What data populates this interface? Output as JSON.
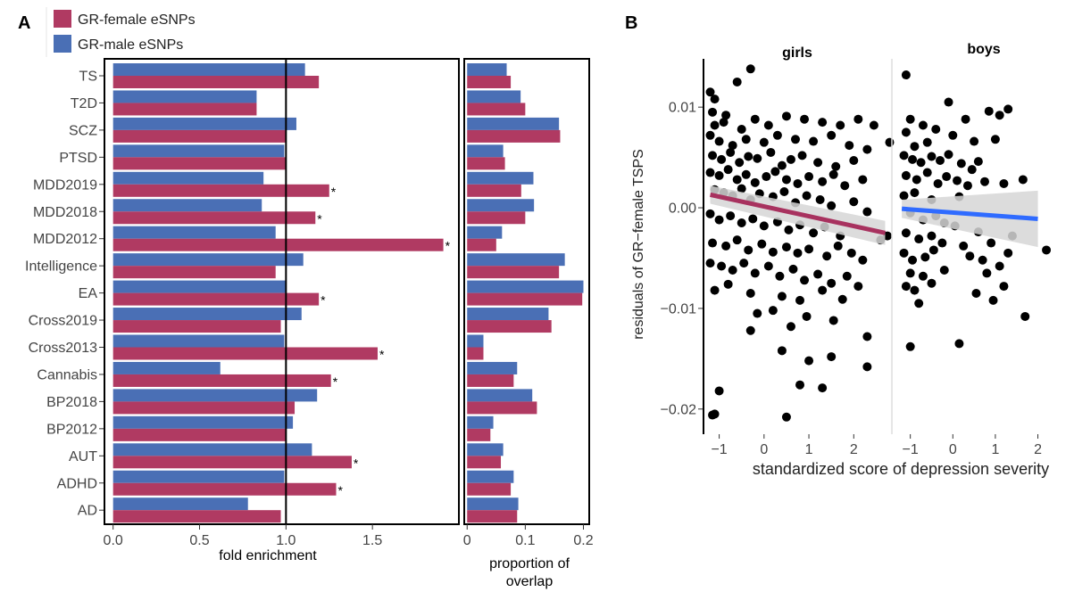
{
  "panel_labels": {
    "a": "A",
    "b": "B"
  },
  "colors": {
    "female": "#B03A62",
    "male": "#4A6FB5",
    "girls_line": "#A8325F",
    "boys_line": "#2F6BFF",
    "ci_fill": "#D6D6D6",
    "point": "#000000"
  },
  "chart_data": [
    {
      "type": "bar",
      "orientation": "horizontal",
      "categories": [
        "TS",
        "T2D",
        "SCZ",
        "PTSD",
        "MDD2019",
        "MDD2018",
        "MDD2012",
        "Intelligence",
        "EA",
        "Cross2019",
        "Cross2013",
        "Cannabis",
        "BP2018",
        "BP2012",
        "AUT",
        "ADHD",
        "AD"
      ],
      "series": [
        {
          "name": "GR-female eSNPs",
          "color": "#B03A62",
          "values": [
            1.19,
            0.83,
            1.0,
            1.0,
            1.25,
            1.17,
            1.91,
            0.94,
            1.19,
            0.97,
            1.53,
            1.26,
            1.05,
            1.0,
            1.38,
            1.29,
            0.97
          ]
        },
        {
          "name": "GR-male eSNPs",
          "color": "#4A6FB5",
          "values": [
            1.11,
            0.83,
            1.06,
            0.99,
            0.87,
            0.86,
            0.94,
            1.1,
            1.0,
            1.09,
            0.99,
            0.62,
            1.18,
            1.04,
            1.15,
            0.99,
            0.78
          ]
        }
      ],
      "significant": [
        false,
        false,
        false,
        false,
        true,
        true,
        true,
        false,
        true,
        false,
        true,
        true,
        false,
        false,
        true,
        true,
        false
      ],
      "significance_marker": "*",
      "reference_line": 1.0,
      "xlabel": "fold enrichment",
      "xlim": [
        -0.05,
        2.0
      ],
      "xticks": [
        "0.0",
        "0.5",
        "1.0",
        "1.5"
      ],
      "legend": [
        "GR-female eSNPs",
        "GR-male eSNPs"
      ],
      "legend_position": "top-left"
    },
    {
      "type": "bar",
      "orientation": "horizontal",
      "series": [
        {
          "name": "GR-female eSNPs",
          "values": [
            0.075,
            0.1,
            0.16,
            0.065,
            0.093,
            0.1,
            0.05,
            0.158,
            0.198,
            0.145,
            0.028,
            0.08,
            0.12,
            0.04,
            0.058,
            0.075,
            0.086
          ]
        },
        {
          "name": "GR-male eSNPs",
          "values": [
            0.068,
            0.092,
            0.158,
            0.062,
            0.114,
            0.115,
            0.06,
            0.168,
            0.2,
            0.14,
            0.028,
            0.086,
            0.112,
            0.045,
            0.062,
            0.08,
            0.088
          ]
        }
      ],
      "xlabel": "proportion of overlap",
      "xlim": [
        -0.005,
        0.21
      ],
      "xticks": [
        "0",
        "0.1",
        "0.2"
      ]
    },
    {
      "type": "scatter",
      "facets": [
        "girls",
        "boys"
      ],
      "ylabel": "residuals of GR−female TSPS",
      "xlabel": "standardized score of depression severity",
      "xlim": [
        -1.35,
        2.85
      ],
      "ylim": [
        -0.0225,
        0.0148
      ],
      "xticks": [
        "−1",
        "0",
        "1",
        "2"
      ],
      "yticks": [
        "0.01",
        "0.00",
        "−0.01",
        "−0.02"
      ],
      "girls": {
        "fit": {
          "x": [
            -1.2,
            2.7
          ],
          "y": [
            0.0013,
            -0.0025
          ],
          "ci_halfwidth_ends": [
            0.0009,
            0.0012
          ]
        },
        "points": [
          [
            -1.2,
            0.0115
          ],
          [
            -1.1,
            0.0108
          ],
          [
            -1.15,
            0.0095
          ],
          [
            -0.85,
            0.0092
          ],
          [
            -0.6,
            0.0125
          ],
          [
            -0.3,
            0.0138
          ],
          [
            -1.1,
            0.0082
          ],
          [
            -0.9,
            0.0085
          ],
          [
            -0.5,
            0.0078
          ],
          [
            -0.2,
            0.0088
          ],
          [
            0.1,
            0.0082
          ],
          [
            0.5,
            0.0091
          ],
          [
            0.9,
            0.0088
          ],
          [
            1.3,
            0.0085
          ],
          [
            1.7,
            0.0082
          ],
          [
            2.1,
            0.0088
          ],
          [
            2.45,
            0.0082
          ],
          [
            -1.2,
            0.0072
          ],
          [
            -1.0,
            0.0066
          ],
          [
            -0.7,
            0.0062
          ],
          [
            -0.4,
            0.0068
          ],
          [
            0.0,
            0.0065
          ],
          [
            0.3,
            0.0072
          ],
          [
            0.7,
            0.0068
          ],
          [
            1.1,
            0.0066
          ],
          [
            1.5,
            0.0072
          ],
          [
            1.9,
            0.0062
          ],
          [
            2.3,
            0.0058
          ],
          [
            2.8,
            0.0065
          ],
          [
            -1.15,
            0.0052
          ],
          [
            -0.95,
            0.0048
          ],
          [
            -0.75,
            0.0055
          ],
          [
            -0.55,
            0.0045
          ],
          [
            -0.35,
            0.0051
          ],
          [
            -0.15,
            0.0049
          ],
          [
            0.15,
            0.0055
          ],
          [
            0.4,
            0.0042
          ],
          [
            0.6,
            0.0048
          ],
          [
            0.85,
            0.0052
          ],
          [
            1.2,
            0.0045
          ],
          [
            1.6,
            0.0041
          ],
          [
            2.0,
            0.0047
          ],
          [
            -1.2,
            0.0035
          ],
          [
            -1.0,
            0.0032
          ],
          [
            -0.8,
            0.0038
          ],
          [
            -0.6,
            0.0028
          ],
          [
            -0.4,
            0.0033
          ],
          [
            -0.2,
            0.0025
          ],
          [
            0.05,
            0.0031
          ],
          [
            0.25,
            0.0036
          ],
          [
            0.5,
            0.0028
          ],
          [
            0.75,
            0.0024
          ],
          [
            1.0,
            0.0031
          ],
          [
            1.3,
            0.0026
          ],
          [
            1.55,
            0.0033
          ],
          [
            1.8,
            0.0022
          ],
          [
            2.2,
            0.0028
          ],
          [
            -1.1,
            0.0018
          ],
          [
            -0.9,
            0.0015
          ],
          [
            -0.7,
            0.0012
          ],
          [
            -0.5,
            0.0019
          ],
          [
            -0.3,
            0.0008
          ],
          [
            -0.1,
            0.0014
          ],
          [
            0.2,
            0.0011
          ],
          [
            0.45,
            0.0016
          ],
          [
            0.7,
            0.0005
          ],
          [
            0.95,
            0.0012
          ],
          [
            1.25,
            0.0008
          ],
          [
            1.5,
            0.0002
          ],
          [
            2.0,
            0.0006
          ],
          [
            2.3,
            -0.0004
          ],
          [
            -1.2,
            -0.0006
          ],
          [
            -1.0,
            -0.0012
          ],
          [
            -0.75,
            -0.0008
          ],
          [
            -0.5,
            -0.0015
          ],
          [
            -0.25,
            -0.0011
          ],
          [
            0.0,
            -0.0018
          ],
          [
            0.3,
            -0.0014
          ],
          [
            0.55,
            -0.0022
          ],
          [
            0.8,
            -0.0017
          ],
          [
            1.1,
            -0.0025
          ],
          [
            1.35,
            -0.0019
          ],
          [
            1.7,
            -0.0028
          ],
          [
            2.6,
            -0.0032
          ],
          [
            2.75,
            -0.0028
          ],
          [
            -1.15,
            -0.0035
          ],
          [
            -0.85,
            -0.0038
          ],
          [
            -0.6,
            -0.0032
          ],
          [
            -0.35,
            -0.0042
          ],
          [
            -0.05,
            -0.0036
          ],
          [
            0.2,
            -0.0044
          ],
          [
            0.5,
            -0.0039
          ],
          [
            0.75,
            -0.0045
          ],
          [
            1.0,
            -0.0041
          ],
          [
            1.4,
            -0.0048
          ],
          [
            1.65,
            -0.0038
          ],
          [
            1.95,
            -0.0045
          ],
          [
            2.2,
            -0.0052
          ],
          [
            -1.2,
            -0.0055
          ],
          [
            -0.95,
            -0.0058
          ],
          [
            -0.7,
            -0.0062
          ],
          [
            -0.45,
            -0.0055
          ],
          [
            -0.2,
            -0.0065
          ],
          [
            0.1,
            -0.0058
          ],
          [
            0.35,
            -0.0068
          ],
          [
            0.65,
            -0.0061
          ],
          [
            0.9,
            -0.0072
          ],
          [
            1.2,
            -0.0066
          ],
          [
            1.5,
            -0.0075
          ],
          [
            1.85,
            -0.0068
          ],
          [
            2.1,
            -0.0078
          ],
          [
            -1.1,
            -0.0082
          ],
          [
            -0.8,
            -0.0076
          ],
          [
            -0.3,
            -0.0085
          ],
          [
            0.4,
            -0.0088
          ],
          [
            0.8,
            -0.0092
          ],
          [
            1.3,
            -0.0082
          ],
          [
            1.75,
            -0.0091
          ],
          [
            -0.15,
            -0.0105
          ],
          [
            0.2,
            -0.0102
          ],
          [
            0.95,
            -0.0108
          ],
          [
            1.55,
            -0.0112
          ],
          [
            -0.3,
            -0.0122
          ],
          [
            0.6,
            -0.0118
          ],
          [
            2.3,
            -0.0128
          ],
          [
            0.4,
            -0.0142
          ],
          [
            1.5,
            -0.0148
          ],
          [
            1.0,
            -0.0152
          ],
          [
            2.3,
            -0.0158
          ],
          [
            0.8,
            -0.0176
          ],
          [
            1.3,
            -0.0179
          ],
          [
            -1.0,
            -0.0182
          ],
          [
            -1.1,
            -0.0205
          ],
          [
            -1.15,
            -0.0206
          ],
          [
            0.5,
            -0.0208
          ]
        ]
      },
      "boys": {
        "fit": {
          "x": [
            -1.2,
            2.0
          ],
          "y": [
            -0.0001,
            -0.0011
          ],
          "ci_halfwidth_ends": [
            0.0009,
            0.0028
          ]
        },
        "points": [
          [
            -1.1,
            0.0132
          ],
          [
            -0.1,
            0.0105
          ],
          [
            0.85,
            0.0096
          ],
          [
            1.3,
            0.0098
          ],
          [
            -1.0,
            0.0088
          ],
          [
            -0.7,
            0.0082
          ],
          [
            -0.4,
            0.0078
          ],
          [
            0.3,
            0.0088
          ],
          [
            1.1,
            0.0092
          ],
          [
            -1.1,
            0.0075
          ],
          [
            -0.9,
            0.0061
          ],
          [
            -0.6,
            0.0065
          ],
          [
            0.0,
            0.0072
          ],
          [
            0.5,
            0.0066
          ],
          [
            1.0,
            0.0068
          ],
          [
            -1.15,
            0.0052
          ],
          [
            -0.95,
            0.0048
          ],
          [
            -0.75,
            0.0045
          ],
          [
            -0.5,
            0.0051
          ],
          [
            -0.3,
            0.0047
          ],
          [
            -0.1,
            0.0053
          ],
          [
            0.2,
            0.0044
          ],
          [
            0.45,
            0.0038
          ],
          [
            0.6,
            0.0046
          ],
          [
            -1.1,
            0.0032
          ],
          [
            -0.85,
            0.0028
          ],
          [
            -0.6,
            0.0035
          ],
          [
            -0.35,
            0.0024
          ],
          [
            -0.15,
            0.0031
          ],
          [
            0.1,
            0.0027
          ],
          [
            0.35,
            0.0022
          ],
          [
            0.75,
            0.0026
          ],
          [
            1.2,
            0.0024
          ],
          [
            1.65,
            0.0028
          ],
          [
            -1.15,
            0.0012
          ],
          [
            -0.9,
            0.0015
          ],
          [
            -0.5,
            0.0008
          ],
          [
            0.15,
            0.0011
          ],
          [
            -1.0,
            -0.0005
          ],
          [
            -0.7,
            -0.0012
          ],
          [
            -0.4,
            -0.0008
          ],
          [
            -0.2,
            -0.0015
          ],
          [
            0.05,
            -0.0018
          ],
          [
            -1.1,
            -0.0025
          ],
          [
            -0.8,
            -0.0031
          ],
          [
            -0.5,
            -0.0028
          ],
          [
            -0.25,
            -0.0035
          ],
          [
            0.25,
            -0.0038
          ],
          [
            0.6,
            -0.0024
          ],
          [
            0.9,
            -0.0035
          ],
          [
            1.4,
            -0.0028
          ],
          [
            -1.15,
            -0.0045
          ],
          [
            -0.95,
            -0.0052
          ],
          [
            -0.65,
            -0.0049
          ],
          [
            -0.45,
            -0.0042
          ],
          [
            0.4,
            -0.0048
          ],
          [
            0.7,
            -0.0052
          ],
          [
            1.3,
            -0.0045
          ],
          [
            2.2,
            -0.0042
          ],
          [
            -1.0,
            -0.0065
          ],
          [
            -0.7,
            -0.0068
          ],
          [
            -0.2,
            -0.0062
          ],
          [
            0.8,
            -0.0065
          ],
          [
            1.1,
            -0.0058
          ],
          [
            -1.1,
            -0.0078
          ],
          [
            -0.9,
            -0.0082
          ],
          [
            -0.5,
            -0.0075
          ],
          [
            0.55,
            -0.0085
          ],
          [
            0.95,
            -0.0092
          ],
          [
            1.2,
            -0.0078
          ],
          [
            -0.8,
            -0.0095
          ],
          [
            1.7,
            -0.0108
          ],
          [
            -1.0,
            -0.0138
          ],
          [
            0.15,
            -0.0135
          ]
        ]
      }
    }
  ]
}
